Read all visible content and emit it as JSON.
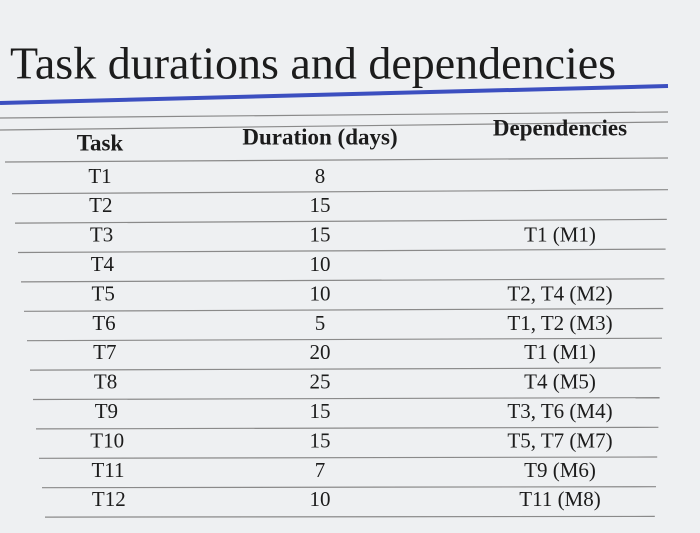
{
  "title": "Task durations and dependencies",
  "table": {
    "columns": [
      "Task",
      "Duration (days)",
      "Dependencies"
    ],
    "rows": [
      [
        "T1",
        8,
        null
      ],
      [
        "T2",
        15,
        null
      ],
      [
        "T3",
        15,
        "T1 (M1)"
      ],
      [
        "T4",
        10,
        null
      ],
      [
        "T5",
        10,
        "T2, T4 (M2)"
      ],
      [
        "T6",
        5,
        "T1, T2 (M3)"
      ],
      [
        "T7",
        20,
        "T1 (M1)"
      ],
      [
        "T8",
        25,
        "T4 (M5)"
      ],
      [
        "T9",
        15,
        "T3, T6 (M4)"
      ],
      [
        "T10",
        15,
        "T5, T7 (M7)"
      ],
      [
        "T11",
        7,
        "T9 (M6)"
      ],
      [
        "T12",
        10,
        "T11 (M8)"
      ]
    ]
  }
}
